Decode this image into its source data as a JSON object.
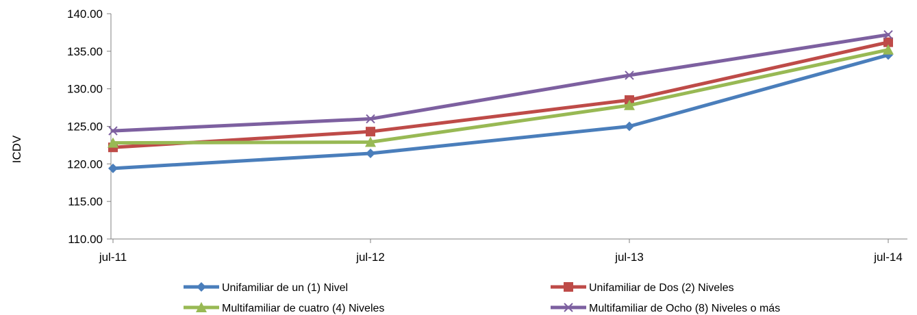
{
  "chart_data": {
    "type": "line",
    "title": "",
    "xlabel": "",
    "ylabel": "ICDV",
    "categories": [
      "jul-11",
      "jul-12",
      "jul-13",
      "jul-14"
    ],
    "ylim": [
      110,
      140
    ],
    "yticks": [
      "110.00",
      "115.00",
      "120.00",
      "125.00",
      "130.00",
      "135.00",
      "140.00"
    ],
    "grid": false,
    "legend_position": "bottom",
    "series": [
      {
        "name": "Unifamiliar de un (1) Nivel",
        "values": [
          119.4,
          121.4,
          125.0,
          134.5
        ],
        "color": "#4a7ebb",
        "marker": "diamond"
      },
      {
        "name": "Unifamiliar de Dos (2) Niveles",
        "values": [
          122.2,
          124.3,
          128.5,
          136.2
        ],
        "color": "#be4b48",
        "marker": "square"
      },
      {
        "name": "Multifamiliar de cuatro (4) Niveles",
        "values": [
          122.8,
          122.9,
          127.8,
          135.2
        ],
        "color": "#98b954",
        "marker": "triangle"
      },
      {
        "name": "Multifamiliar de Ocho (8) Niveles o más",
        "values": [
          124.4,
          126.0,
          131.8,
          137.2
        ],
        "color": "#7d60a0",
        "marker": "x"
      }
    ]
  }
}
